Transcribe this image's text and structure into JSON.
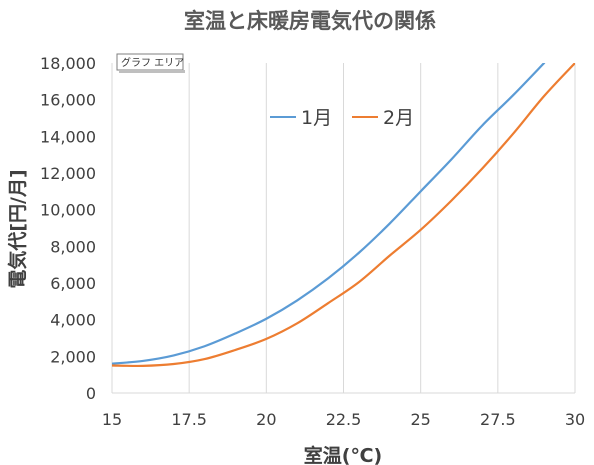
{
  "chart_data": {
    "type": "line",
    "title": "室温と床暖房電気代の関係",
    "xlabel": "室温(℃)",
    "ylabel": "電気代[円/月]",
    "xlim": [
      15,
      30
    ],
    "ylim": [
      0,
      18000
    ],
    "x_ticks": [
      "15",
      "17.5",
      "20",
      "22.5",
      "25",
      "27.5",
      "30"
    ],
    "y_ticks": [
      "0",
      "2,000",
      "4,000",
      "6,000",
      "8,000",
      "10,000",
      "12,000",
      "14,000",
      "16,000",
      "18,000"
    ],
    "grid": "vertical",
    "legend_position": "top-center",
    "tooltip": "グラフ エリア",
    "series": [
      {
        "name": "1月",
        "color": "#5b9bd5",
        "x": [
          15,
          16,
          17,
          18,
          19,
          20,
          21,
          22,
          23,
          24,
          25,
          26,
          27,
          28,
          29
        ],
        "y": [
          1600,
          1750,
          2050,
          2550,
          3250,
          4050,
          5050,
          6250,
          7650,
          9250,
          11000,
          12750,
          14600,
          16250,
          18000
        ]
      },
      {
        "name": "2月",
        "color": "#ed7d31",
        "x": [
          15,
          16,
          17,
          18,
          19,
          20,
          21,
          22,
          23,
          24,
          25,
          26,
          27,
          28,
          29,
          30
        ],
        "y": [
          1500,
          1480,
          1580,
          1850,
          2350,
          2950,
          3800,
          4900,
          6050,
          7500,
          8900,
          10500,
          12250,
          14150,
          16200,
          18000
        ]
      }
    ]
  }
}
